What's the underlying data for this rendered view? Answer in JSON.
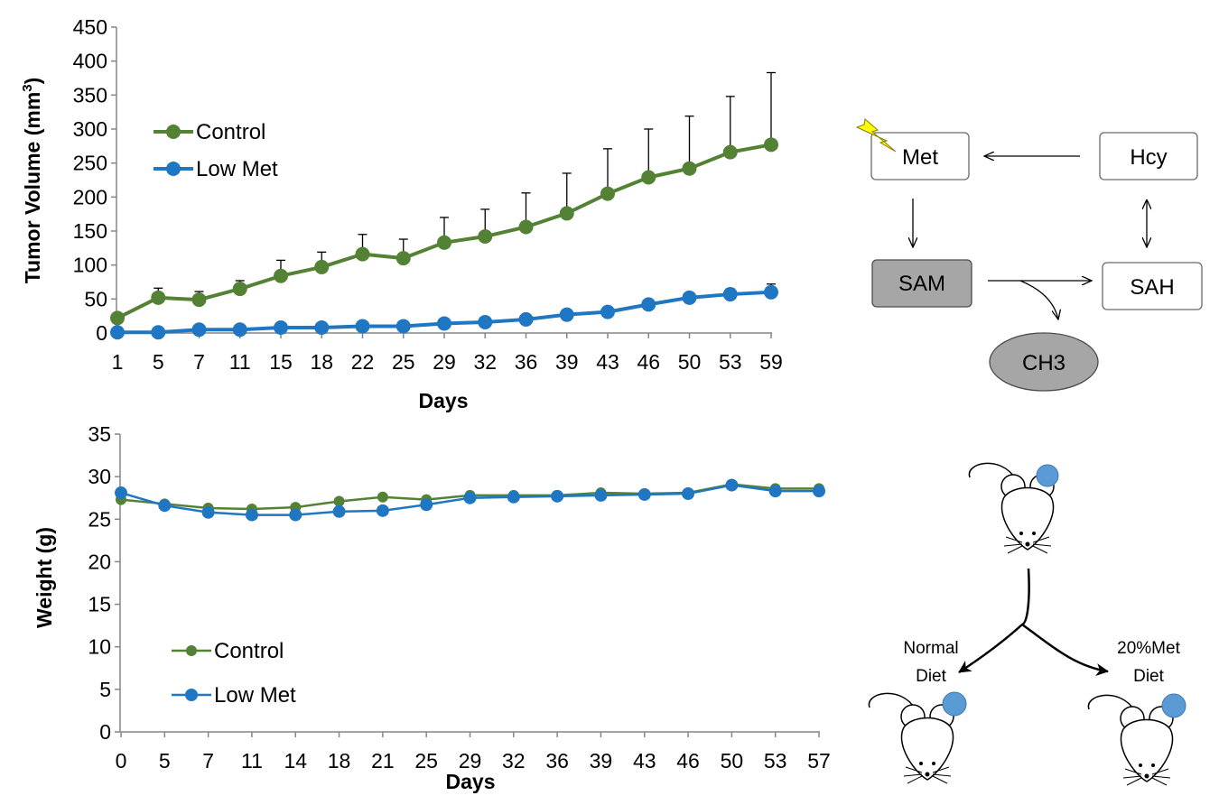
{
  "chart_data": [
    {
      "type": "line",
      "ylabel": "Tumor Volume (mm3)",
      "ylabel_main": "Tumor Volume (mm",
      "ylabel_sup": "3",
      "ylabel_close": ")",
      "xlabel": "Days",
      "ylim": [
        0,
        450
      ],
      "yticks": [
        0,
        50,
        100,
        150,
        200,
        250,
        300,
        350,
        400,
        450
      ],
      "categories": [
        "1",
        "5",
        "7",
        "11",
        "15",
        "18",
        "22",
        "25",
        "29",
        "32",
        "36",
        "39",
        "43",
        "46",
        "50",
        "53",
        "59"
      ],
      "grid": false,
      "legend_position": "upper-left",
      "series": [
        {
          "name": "Control",
          "color": "#548235",
          "values": [
            22,
            52,
            49,
            65,
            84,
            97,
            116,
            110,
            133,
            142,
            156,
            176,
            205,
            229,
            242,
            266,
            277
          ],
          "error": [
            0,
            14,
            12,
            12,
            23,
            22,
            29,
            28,
            37,
            40,
            50,
            59,
            66,
            71,
            77,
            82,
            106
          ]
        },
        {
          "name": "Low Met",
          "color": "#1f77c4",
          "values": [
            1,
            1,
            5,
            5,
            8,
            8,
            10,
            10,
            14,
            16,
            20,
            27,
            31,
            42,
            52,
            57,
            60
          ],
          "error": [
            0,
            0,
            0,
            0,
            0,
            0,
            0,
            0,
            0,
            0,
            0,
            0,
            0,
            6,
            6,
            8,
            12
          ]
        }
      ]
    },
    {
      "type": "line",
      "ylabel": "Weight (g)",
      "xlabel": "Days",
      "ylim": [
        0,
        35
      ],
      "yticks": [
        0,
        5,
        10,
        15,
        20,
        25,
        30,
        35
      ],
      "categories": [
        "0",
        "5",
        "7",
        "11",
        "14",
        "18",
        "21",
        "25",
        "29",
        "32",
        "36",
        "39",
        "43",
        "46",
        "50",
        "53",
        "57"
      ],
      "grid": false,
      "legend_position": "lower-left",
      "series": [
        {
          "name": "Control",
          "color": "#548235",
          "values": [
            27.3,
            26.8,
            26.3,
            26.2,
            26.4,
            27.1,
            27.6,
            27.3,
            27.8,
            27.8,
            27.8,
            28.1,
            28.0,
            28.1,
            29.1,
            28.6,
            28.6
          ]
        },
        {
          "name": "Low Met",
          "color": "#1f77c4",
          "values": [
            28.1,
            26.6,
            25.8,
            25.5,
            25.5,
            25.9,
            26.0,
            26.7,
            27.5,
            27.6,
            27.7,
            27.8,
            27.9,
            28.0,
            29.0,
            28.3,
            28.3
          ]
        }
      ]
    }
  ],
  "pathway": {
    "met": "Met",
    "hcy": "Hcy",
    "sam": "SAM",
    "sah": "SAH",
    "ch3": "CH3",
    "box_fill": "#ffffff",
    "highlight_fill": "#a6a6a6",
    "lightning_color": "#ffff00"
  },
  "mice": {
    "normal_line1": "Normal",
    "normal_line2": "Diet",
    "lowmet_line1": "20%Met",
    "lowmet_line2": "Diet",
    "tumor_color": "#5b9bd5"
  }
}
